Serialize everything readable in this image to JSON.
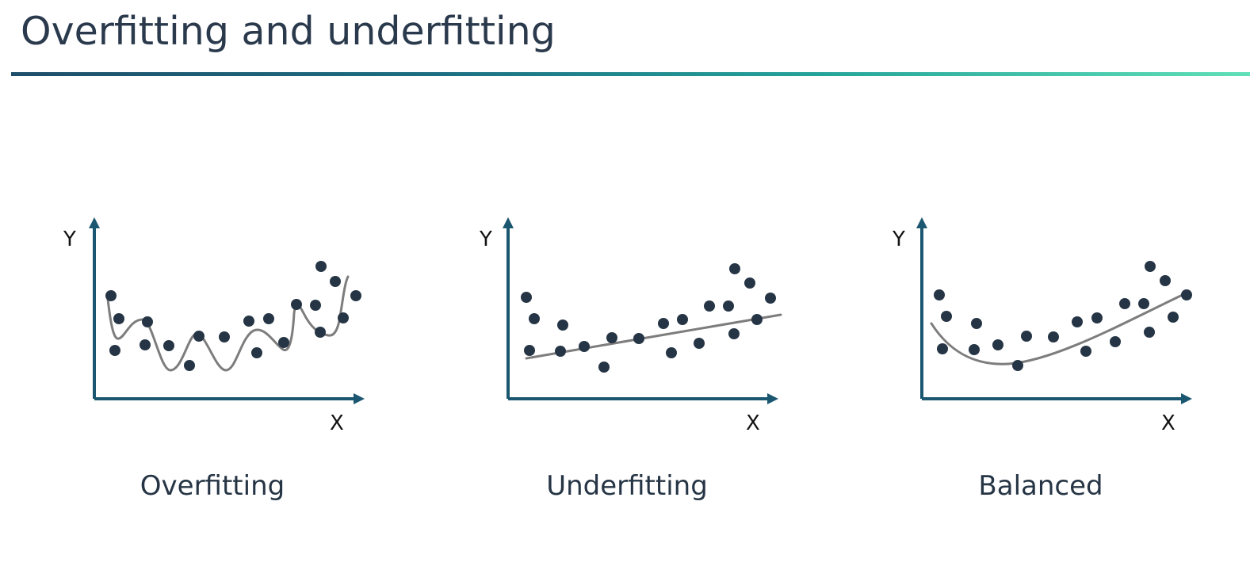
{
  "title": "Overfitting and underfitting",
  "colors": {
    "axis": "#1b5770",
    "point": "#263545",
    "fit_line": "#7d7d7d",
    "title_rule_start": "#1e4e6a",
    "title_rule_end": "#5fe0b8"
  },
  "panels": [
    {
      "id": "overfitting",
      "caption": "Overfitting",
      "y_axis_label": "Y",
      "x_axis_label": "X",
      "fit": "wiggly-interpolating-curve"
    },
    {
      "id": "underfitting",
      "caption": "Underfitting",
      "y_axis_label": "Y",
      "x_axis_label": "X",
      "fit": "straight-line"
    },
    {
      "id": "balanced",
      "caption": "Balanced",
      "y_axis_label": "Y",
      "x_axis_label": "X",
      "fit": "smooth-u-curve"
    }
  ]
}
